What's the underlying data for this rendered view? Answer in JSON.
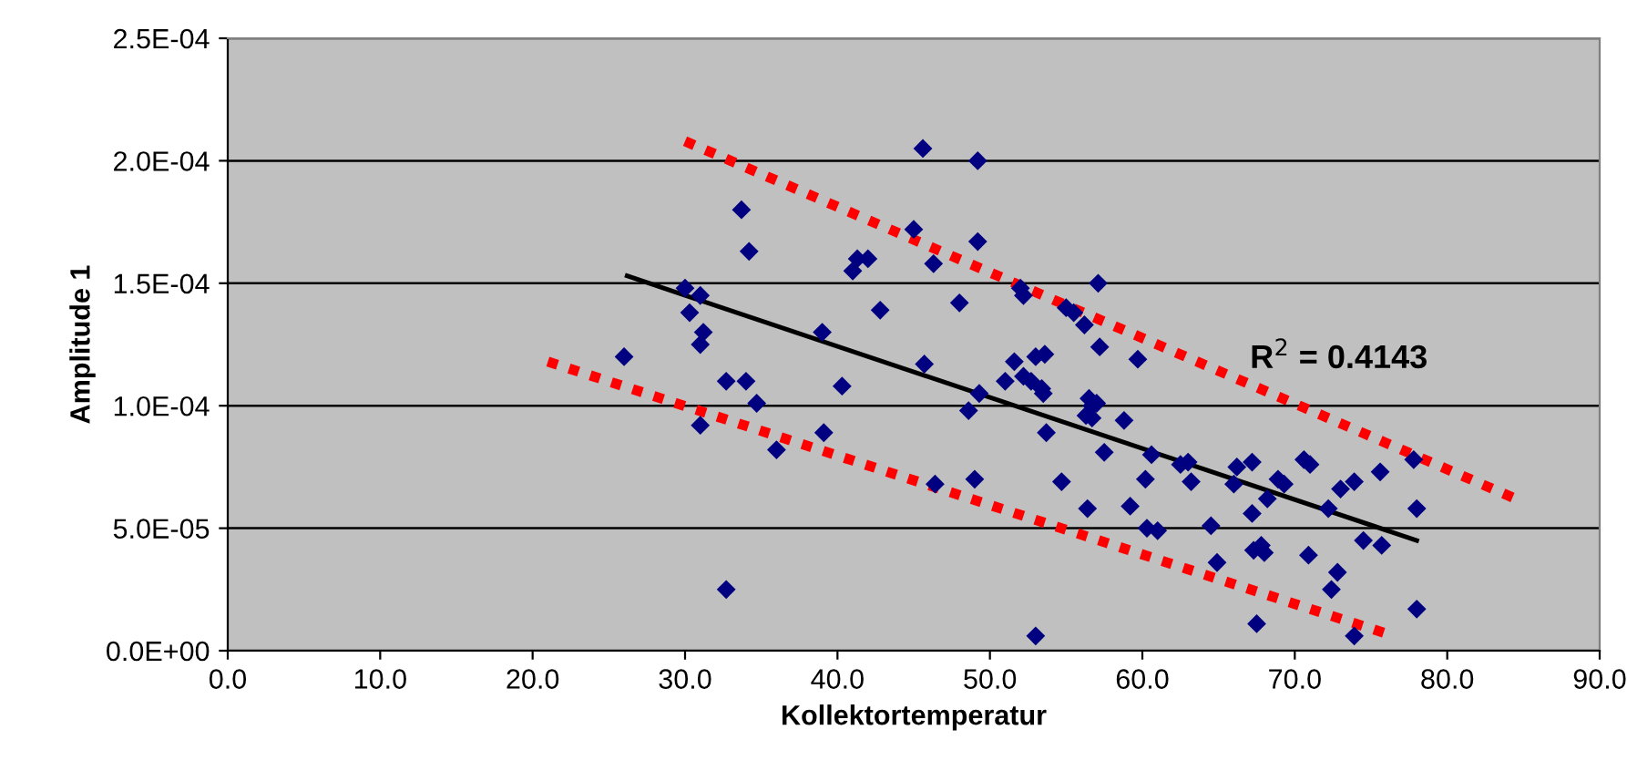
{
  "chart_data": {
    "type": "scatter",
    "xlabel": "Kollektortemperatur",
    "ylabel": "Amplitude 1",
    "xlim": [
      0,
      90
    ],
    "ylim": [
      0,
      0.00025
    ],
    "xticks": [
      {
        "value": 0,
        "label": "0.0"
      },
      {
        "value": 10,
        "label": "10.0"
      },
      {
        "value": 20,
        "label": "20.0"
      },
      {
        "value": 30,
        "label": "30.0"
      },
      {
        "value": 40,
        "label": "40.0"
      },
      {
        "value": 50,
        "label": "50.0"
      },
      {
        "value": 60,
        "label": "60.0"
      },
      {
        "value": 70,
        "label": "70.0"
      },
      {
        "value": 80,
        "label": "80.0"
      },
      {
        "value": 90,
        "label": "90.0"
      }
    ],
    "yticks": [
      {
        "value": 0,
        "label": "0.0E+00"
      },
      {
        "value": 5e-05,
        "label": "5.0E-05"
      },
      {
        "value": 0.0001,
        "label": "1.0E-04"
      },
      {
        "value": 0.00015,
        "label": "1.5E-04"
      },
      {
        "value": 0.0002,
        "label": "2.0E-04"
      },
      {
        "value": 0.00025,
        "label": "2.5E-04"
      }
    ],
    "grid": "y",
    "annotations": [
      "R$^{2}$ = 0.4143"
    ],
    "series": [
      {
        "color": "#000080",
        "marker": "diamond",
        "x": [
          26.0,
          30.0,
          30.3,
          31.0,
          31.0,
          31.2,
          31.0,
          32.7,
          32.7,
          33.7,
          34.2,
          34.0,
          34.7,
          36.0,
          39.0,
          39.1,
          40.3,
          41.0,
          41.3,
          42.0,
          42.8,
          45.0,
          45.6,
          45.7,
          46.3,
          46.4,
          48.0,
          48.6,
          49.0,
          49.2,
          49.2,
          49.3,
          51.0,
          51.6,
          52.0,
          52.2,
          52.2,
          52.7,
          53.0,
          53.0,
          53.4,
          53.5,
          53.6,
          53.7,
          54.7,
          55.0,
          55.5,
          56.2,
          56.3,
          56.4,
          56.5,
          56.7,
          56.7,
          57.0,
          57.1,
          57.2,
          57.5,
          58.8,
          59.2,
          59.7,
          60.2,
          60.3,
          60.6,
          61.0,
          62.5,
          63.2,
          63.0,
          64.5,
          64.9,
          66.0,
          66.2,
          67.2,
          67.2,
          67.3,
          67.5,
          67.8,
          68.0,
          68.2,
          68.9,
          69.3,
          70.6,
          71.0,
          70.9,
          72.2,
          72.4,
          72.8,
          73.0,
          73.9,
          73.9,
          74.5,
          75.6,
          75.7,
          77.8,
          78.0,
          78.0
        ],
        "values": [
          0.00012,
          0.000148,
          0.000138,
          0.000145,
          0.000125,
          0.00013,
          9.2e-05,
          0.00011,
          2.5e-05,
          0.00018,
          0.000163,
          0.00011,
          0.000101,
          8.2e-05,
          0.00013,
          8.9e-05,
          0.000108,
          0.000155,
          0.00016,
          0.00016,
          0.000139,
          0.000172,
          0.000205,
          0.000117,
          0.000158,
          6.8e-05,
          0.000142,
          9.8e-05,
          7e-05,
          0.0002,
          0.000167,
          0.000105,
          0.00011,
          0.000118,
          0.000148,
          0.000145,
          0.000112,
          0.00011,
          0.00012,
          6e-06,
          0.000107,
          0.000105,
          0.000121,
          8.9e-05,
          6.9e-05,
          0.00014,
          0.000138,
          0.000133,
          9.6e-05,
          5.8e-05,
          0.000103,
          9.5e-05,
          0.0001,
          0.000101,
          0.00015,
          0.000124,
          8.1e-05,
          9.4e-05,
          5.9e-05,
          0.000119,
          7e-05,
          5e-05,
          8e-05,
          4.9e-05,
          7.6e-05,
          6.9e-05,
          7.7e-05,
          5.1e-05,
          3.6e-05,
          6.8e-05,
          7.5e-05,
          7.7e-05,
          5.6e-05,
          4.1e-05,
          1.1e-05,
          4.3e-05,
          4e-05,
          6.2e-05,
          7e-05,
          6.8e-05,
          7.8e-05,
          7.6e-05,
          3.9e-05,
          5.8e-05,
          2.5e-05,
          3.2e-05,
          6.6e-05,
          6.9e-05,
          6e-06,
          4.5e-05,
          7.3e-05,
          4.3e-05,
          7.8e-05,
          5.8e-05,
          1.7e-05
        ]
      },
      {
        "type": "line",
        "color": "#000000",
        "line_style": "solid",
        "x": [
          26.2,
          78.0
        ],
        "values": [
          0.000153,
          4.5e-05
        ]
      },
      {
        "type": "line",
        "color": "#ff0000",
        "line_style": "dotted",
        "x": [
          30.0,
          84.5
        ],
        "values": [
          0.000208,
          6.2e-05
        ]
      },
      {
        "type": "line",
        "color": "#ff0000",
        "line_style": "dotted",
        "x": [
          21.0,
          76.0
        ],
        "values": [
          0.000118,
          7e-06
        ]
      }
    ]
  }
}
